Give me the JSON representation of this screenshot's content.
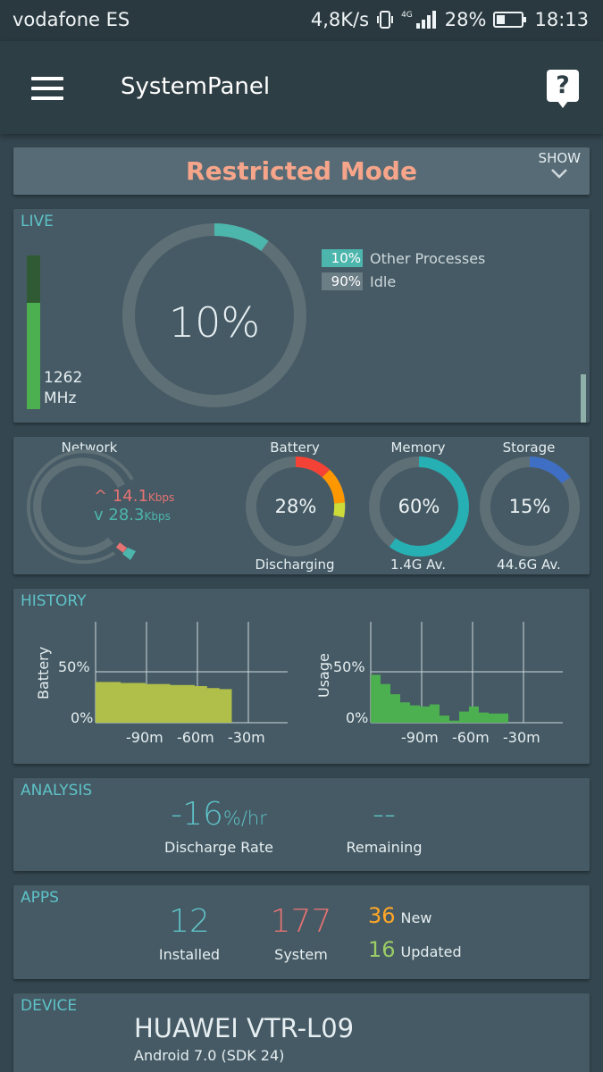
{
  "statusbar": {
    "carrier": "vodafone ES",
    "net_speed": "4,8K/s",
    "network_type": "4G",
    "battery_pct": "28%",
    "time": "18:13"
  },
  "appbar": {
    "title": "SystemPanel",
    "help_glyph": "?"
  },
  "restricted": {
    "title": "Restricted Mode",
    "show_label": "SHOW"
  },
  "live": {
    "label": "LIVE",
    "freq_value": "1262",
    "freq_unit": "MHz",
    "freq_level": 0.69,
    "cpu_pct": "10%",
    "cpu_fraction": 0.1,
    "legend": [
      {
        "pct": "10%",
        "label": "Other Processes",
        "color": "#4db6ac"
      },
      {
        "pct": "90%",
        "label": "Idle",
        "color": "#6b7d85"
      }
    ]
  },
  "stats": {
    "network": {
      "label": "Network",
      "up": "14.1",
      "down": "28.3",
      "unit": "Kbps"
    },
    "battery": {
      "label": "Battery",
      "value": "28%",
      "fraction": 0.28,
      "sub": "Discharging"
    },
    "memory": {
      "label": "Memory",
      "value": "60%",
      "fraction": 0.6,
      "sub": "1.4G Av.",
      "color": "#26b0b3"
    },
    "storage": {
      "label": "Storage",
      "value": "15%",
      "fraction": 0.15,
      "sub": "44.6G Av.",
      "color": "#3f6fc4"
    }
  },
  "history": {
    "label": "HISTORY",
    "battery_axis": "Battery",
    "usage_axis": "Usage",
    "y_ticks": [
      "50%",
      "0%"
    ],
    "x_ticks": [
      "-90m",
      "-60m",
      "-30m"
    ],
    "battery_color": "#afbf4a",
    "usage_color": "#4caf50"
  },
  "chart_data": [
    {
      "type": "area",
      "title": "",
      "ylabel": "Battery",
      "xlabel": "",
      "x_ticks": [
        "-90m",
        "-60m",
        "-30m"
      ],
      "ylim": [
        0,
        100
      ],
      "values": [
        40,
        40,
        39,
        39,
        38,
        38,
        37,
        37,
        36,
        34,
        33
      ]
    },
    {
      "type": "bar",
      "title": "",
      "ylabel": "Usage",
      "xlabel": "",
      "x_ticks": [
        "-90m",
        "-60m",
        "-30m"
      ],
      "ylim": [
        0,
        100
      ],
      "values": [
        47,
        38,
        28,
        20,
        17,
        16,
        18,
        7,
        2,
        11,
        16,
        10,
        9,
        9
      ]
    }
  ],
  "analysis": {
    "label": "ANALYSIS",
    "discharge_value": "-16",
    "discharge_unit": "%/hr",
    "discharge_label": "Discharge Rate",
    "remaining_value": "--",
    "remaining_label": "Remaining"
  },
  "apps": {
    "label": "APPS",
    "installed_value": "12",
    "installed_label": "Installed",
    "system_value": "177",
    "system_label": "System",
    "new_value": "36",
    "new_label": "New",
    "updated_value": "16",
    "updated_label": "Updated"
  },
  "device": {
    "label": "DEVICE",
    "name": "HUAWEI VTR-L09",
    "version": "Android 7.0 (SDK 24)"
  }
}
